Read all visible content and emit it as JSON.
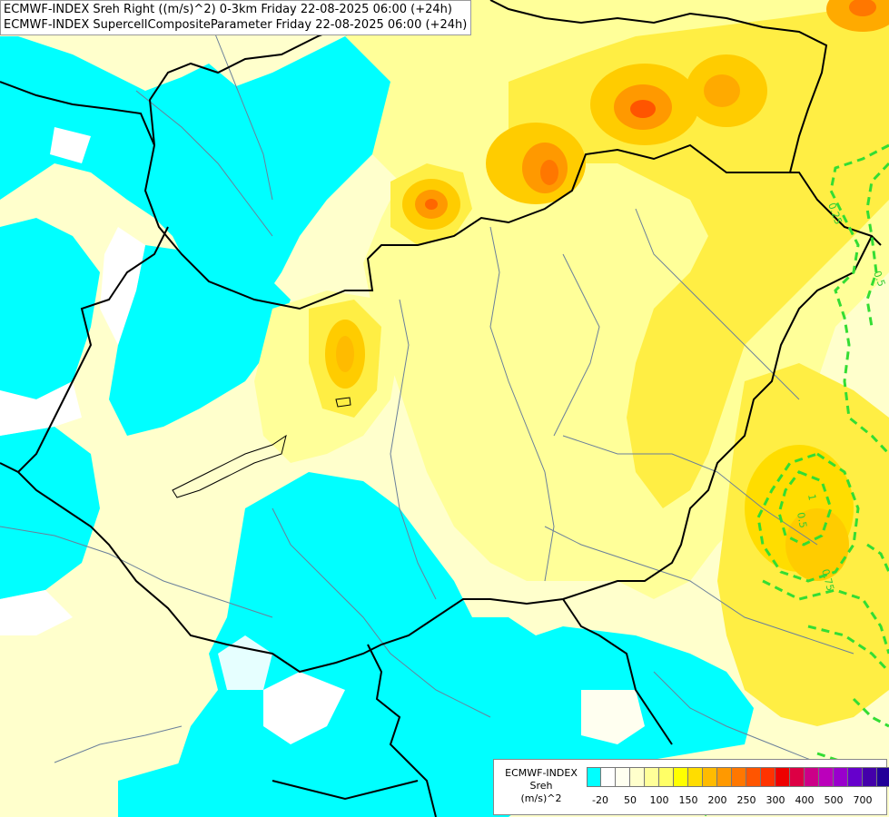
{
  "titles": [
    "ECMWF-INDEX Sreh Right ((m/s)^2) 0-3km Friday 22-08-2025 06:00 (+24h)",
    "ECMWF-INDEX SupercellCompositeParameter Friday 22-08-2025 06:00 (+24h)"
  ],
  "legend": {
    "line1": "ECMWF-INDEX",
    "line2": "Sreh",
    "line3": "(m/s)^2",
    "colors": [
      "#00ffff",
      "#ffffff",
      "#fffff0",
      "#ffffcc",
      "#ffff99",
      "#ffff66",
      "#ffff00",
      "#ffdd00",
      "#ffbb00",
      "#ff9900",
      "#ff7700",
      "#ff5500",
      "#ff3300",
      "#ee0000",
      "#dd0044",
      "#cc0088",
      "#bb00bb",
      "#9900cc",
      "#6600cc",
      "#4400aa",
      "#220099",
      "#000080"
    ],
    "ticks": [
      "-20",
      "50",
      "100",
      "150",
      "200",
      "250",
      "300",
      "400",
      "500",
      "700"
    ]
  },
  "contour_labels": [
    "0.25",
    "0.5",
    "0.5",
    "0.75",
    "1"
  ],
  "colors": {
    "cyan": "#00ffff",
    "pale": "#ffffcc",
    "light_yellow": "#ffff99",
    "yellow": "#ffee44",
    "orange": "#ffaa00",
    "deep_orange": "#ff7700",
    "border": "#000000",
    "river": "#6a7f9a",
    "scp_contour": "#33dd33"
  }
}
